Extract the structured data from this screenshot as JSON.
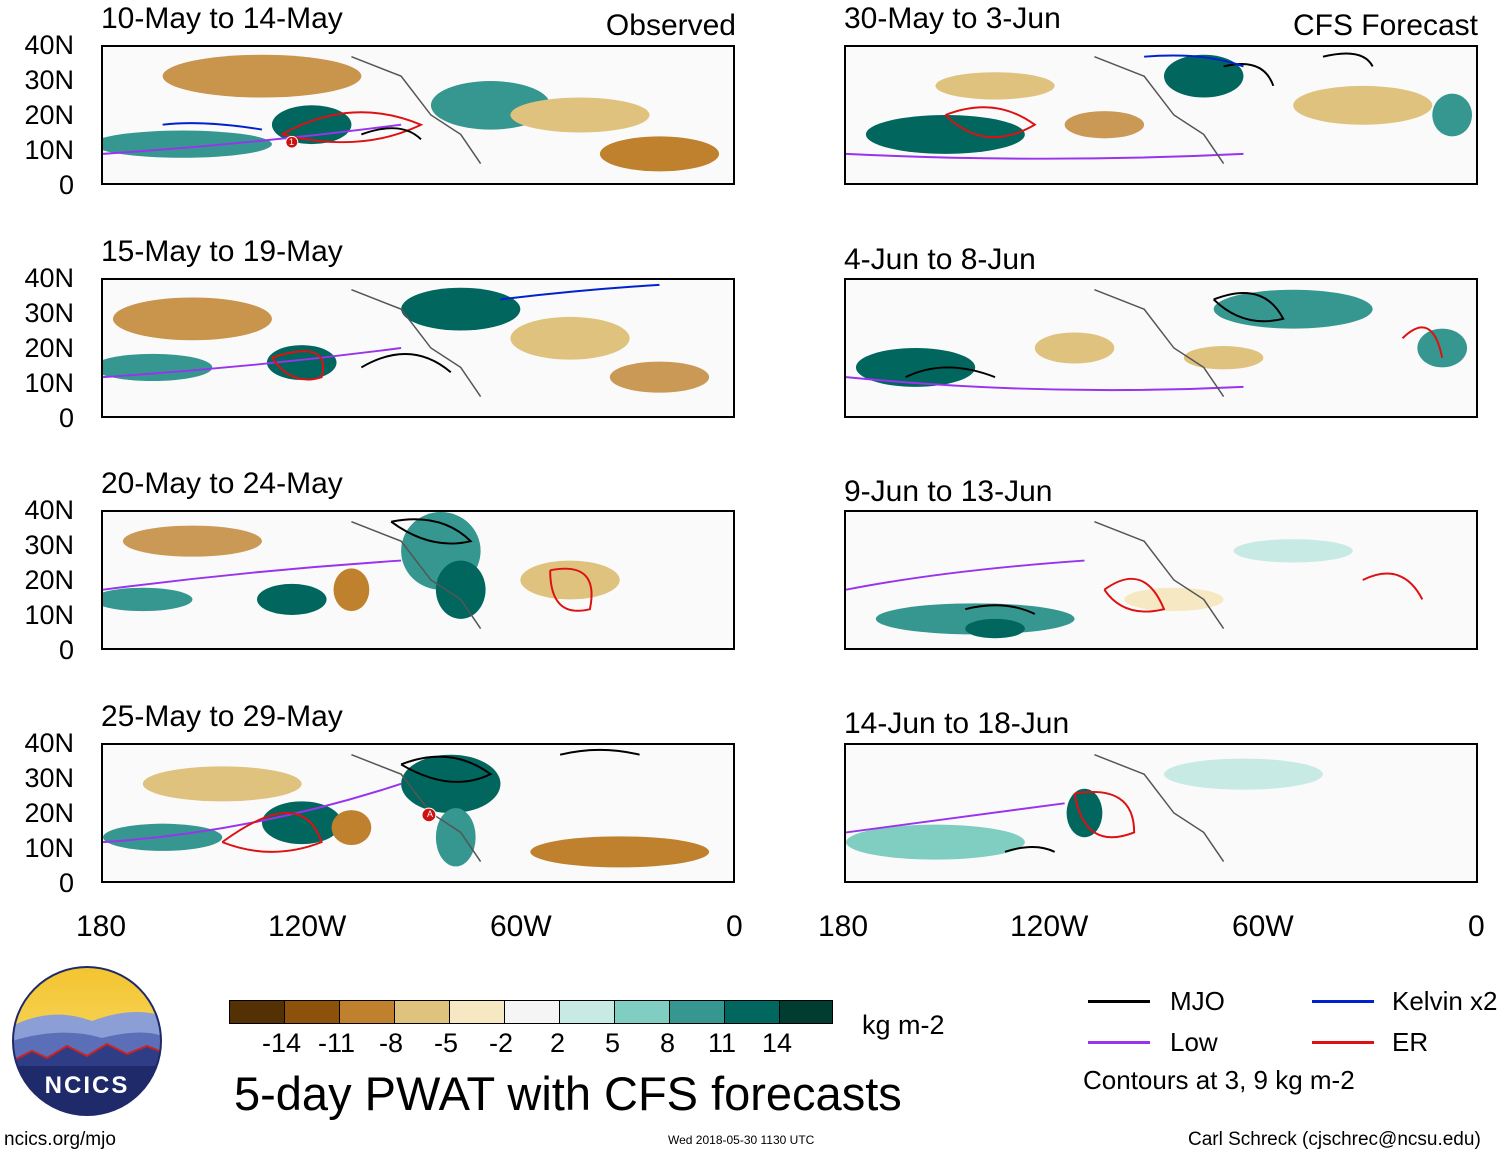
{
  "left_header": "Observed",
  "right_header": "CFS Forecast",
  "panels_left": [
    {
      "title": "10-May to 14-May"
    },
    {
      "title": "15-May to 19-May"
    },
    {
      "title": "20-May to 24-May"
    },
    {
      "title": "25-May to 29-May"
    }
  ],
  "panels_right": [
    {
      "title": "30-May to 3-Jun"
    },
    {
      "title": "4-Jun to 8-Jun"
    },
    {
      "title": "9-Jun to 13-Jun"
    },
    {
      "title": "14-Jun to 18-Jun"
    }
  ],
  "lat_labels": [
    "40N",
    "30N",
    "20N",
    "10N",
    "0"
  ],
  "lon_labels": [
    "180",
    "120W",
    "60W",
    "0"
  ],
  "storm_markers": {
    "first": "1",
    "second": "A"
  },
  "colorbar": {
    "ticks": [
      "-14",
      "-11",
      "-8",
      "-5",
      "-2",
      "2",
      "5",
      "8",
      "11",
      "14"
    ],
    "colors": [
      "#543005",
      "#8c510a",
      "#bf812d",
      "#dfc27d",
      "#f6e8c3",
      "#f5f5f5",
      "#c7eae5",
      "#80cdc1",
      "#35978f",
      "#01665e",
      "#003c30"
    ],
    "unit": "kg m-2"
  },
  "title": "5-day PWAT with CFS forecasts",
  "legend": {
    "items": [
      {
        "label": "MJO",
        "color": "#000000"
      },
      {
        "label": "Kelvin x2",
        "color": "#0022cc"
      },
      {
        "label": "Low",
        "color": "#9933ee"
      },
      {
        "label": "ER",
        "color": "#dd1111"
      }
    ],
    "contours_note": "Contours at 3, 9 kg m-2"
  },
  "logo_text": "NCICS",
  "footer": {
    "url": "ncics.org/mjo",
    "timestamp": "Wed 2018-05-30 1130 UTC",
    "credit": "Carl Schreck (cjschrec@ncsu.edu)"
  }
}
